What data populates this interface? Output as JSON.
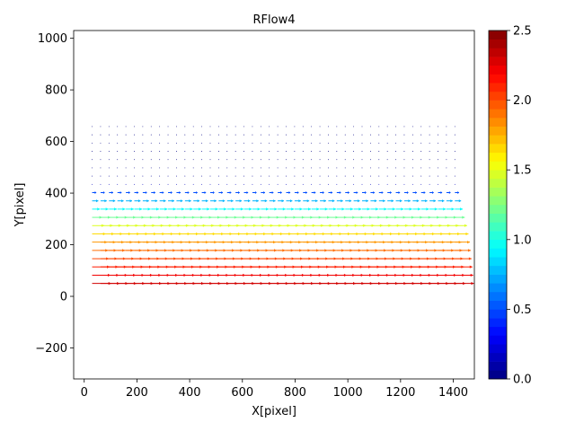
{
  "chart_data": {
    "type": "quiver",
    "title": "RFlow4",
    "xlabel": "X[pixel]",
    "ylabel": "Y[pixel]",
    "xlim": [
      -40,
      1480
    ],
    "ylim": [
      -320,
      1030
    ],
    "xticks": [
      0,
      200,
      400,
      600,
      800,
      1000,
      1200,
      1400
    ],
    "yticks": [
      -200,
      0,
      200,
      400,
      600,
      800,
      1000
    ],
    "grid": false,
    "colorbar": {
      "colormap": "jet",
      "range": [
        0.0,
        2.5
      ],
      "ticks": [
        "0.0",
        "0.5",
        "1.0",
        "1.5",
        "2.0",
        "2.5"
      ],
      "levels": 40
    },
    "field": {
      "x_start": 30,
      "x_step": 32,
      "x_count": 44,
      "rows": [
        {
          "y": 50,
          "magnitude": 2.3,
          "dy": 0.0
        },
        {
          "y": 82,
          "magnitude": 2.22,
          "dy": 0.0
        },
        {
          "y": 114,
          "magnitude": 2.12,
          "dy": 0.0
        },
        {
          "y": 146,
          "magnitude": 2.02,
          "dy": 0.0
        },
        {
          "y": 178,
          "magnitude": 1.92,
          "dy": 0.0
        },
        {
          "y": 210,
          "magnitude": 1.82,
          "dy": 0.0
        },
        {
          "y": 242,
          "magnitude": 1.65,
          "dy": 0.0
        },
        {
          "y": 274,
          "magnitude": 1.48,
          "dy": 0.0
        },
        {
          "y": 306,
          "magnitude": 1.2,
          "dy": 0.0
        },
        {
          "y": 338,
          "magnitude": 0.95,
          "dy": 0.0
        },
        {
          "y": 370,
          "magnitude": 0.75,
          "dy": 0.0
        },
        {
          "y": 402,
          "magnitude": 0.5,
          "dy": 0.0
        },
        {
          "y": 434,
          "magnitude": 0.15,
          "dy": 0.0
        },
        {
          "y": 466,
          "magnitude": 0.05,
          "dy": 0.0
        },
        {
          "y": 498,
          "magnitude": 0.02,
          "dy": 0.0
        },
        {
          "y": 530,
          "magnitude": 0.02,
          "dy": 0.0
        },
        {
          "y": 562,
          "magnitude": 0.01,
          "dy": 0.0
        },
        {
          "y": 594,
          "magnitude": 0.01,
          "dy": 0.0
        },
        {
          "y": 626,
          "magnitude": 0.01,
          "dy": 0.0
        },
        {
          "y": 658,
          "magnitude": 0.01,
          "dy": 0.0
        }
      ]
    }
  }
}
